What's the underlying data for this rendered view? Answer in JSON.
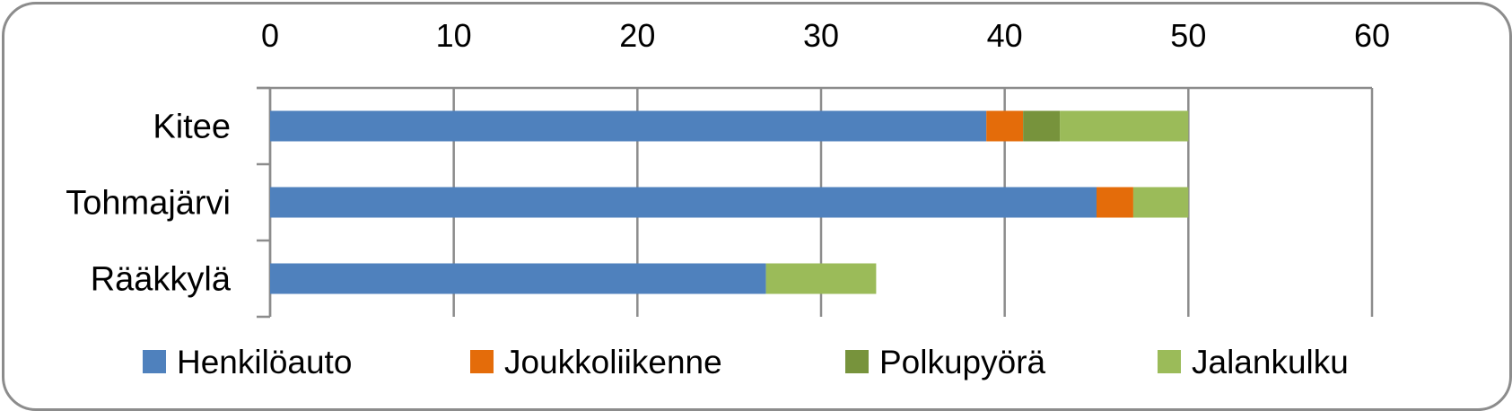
{
  "chart_data": {
    "type": "bar",
    "orientation": "horizontal",
    "stacked": true,
    "categories": [
      "Kitee",
      "Tohmajärvi",
      "Rääkkylä"
    ],
    "series": [
      {
        "name": "Henkilöauto",
        "color": "#4f81bd",
        "values": [
          39,
          45,
          27
        ]
      },
      {
        "name": "Joukkoliikenne",
        "color": "#e46c0a",
        "values": [
          2,
          2,
          0
        ]
      },
      {
        "name": "Polkupyörä",
        "color": "#77933c",
        "values": [
          2,
          0,
          0
        ]
      },
      {
        "name": "Jalankulku",
        "color": "#9bbb59",
        "values": [
          7,
          3,
          6
        ]
      }
    ],
    "xlim": [
      0,
      60
    ],
    "xticks": [
      "0",
      "10",
      "20",
      "30",
      "40",
      "50",
      "60"
    ],
    "xaxis_position": "top",
    "grid": true,
    "legend_position": "bottom",
    "title": "",
    "xlabel": "",
    "ylabel": ""
  }
}
